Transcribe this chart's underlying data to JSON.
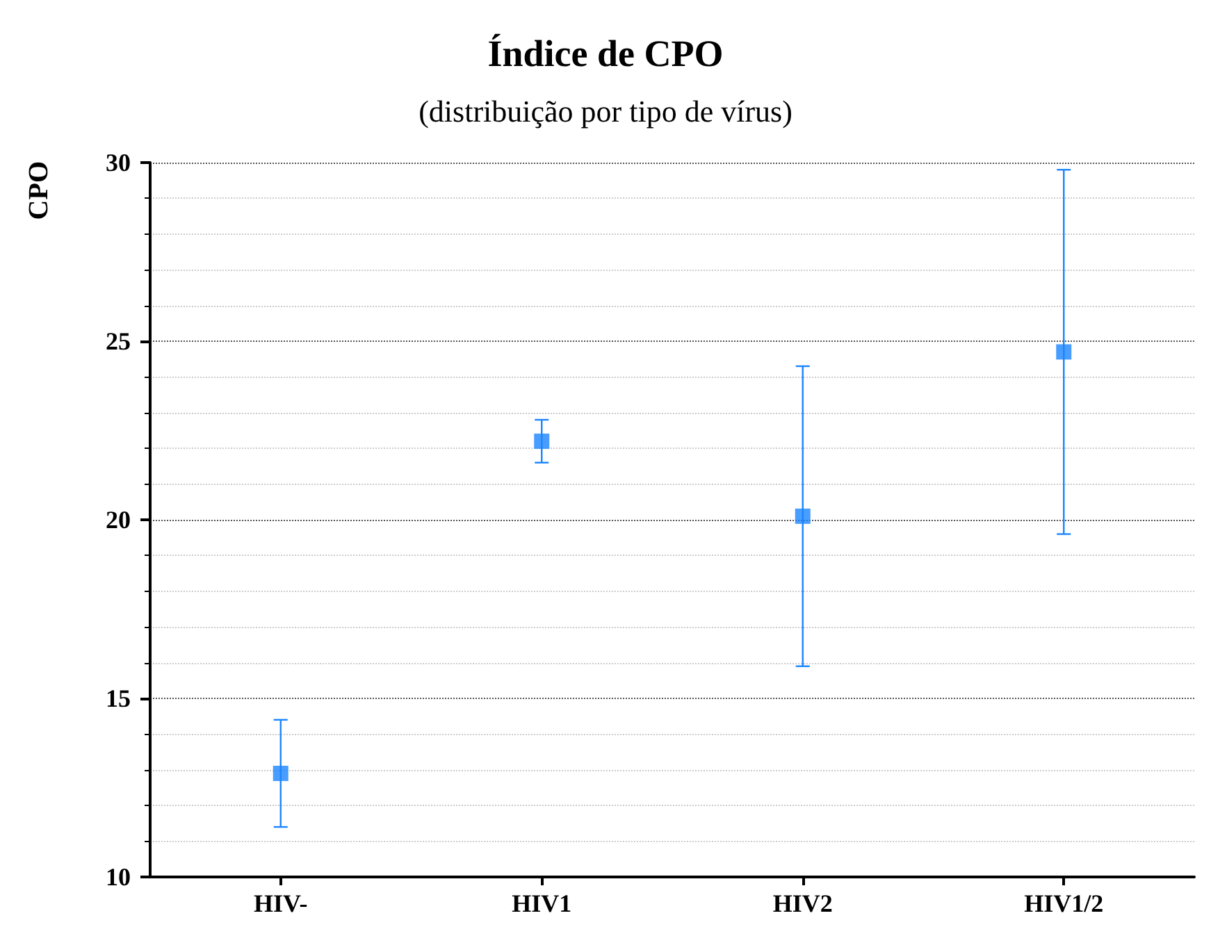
{
  "chart_data": {
    "type": "scatter",
    "title": "Índice de CPO",
    "subtitle": "(distribuição por tipo de vírus)",
    "ylabel": "CPO",
    "categories": [
      "HIV-",
      "HIV1",
      "HIV2",
      "HIV1/2"
    ],
    "values": [
      12.9,
      22.2,
      20.1,
      24.7
    ],
    "errors": [
      1.5,
      0.6,
      4.2,
      5.1
    ],
    "color": "#1a85ff",
    "marker": "square",
    "grid": "y",
    "ylim": [
      10,
      30
    ],
    "yticks": [
      10,
      15,
      20,
      25,
      30
    ]
  }
}
